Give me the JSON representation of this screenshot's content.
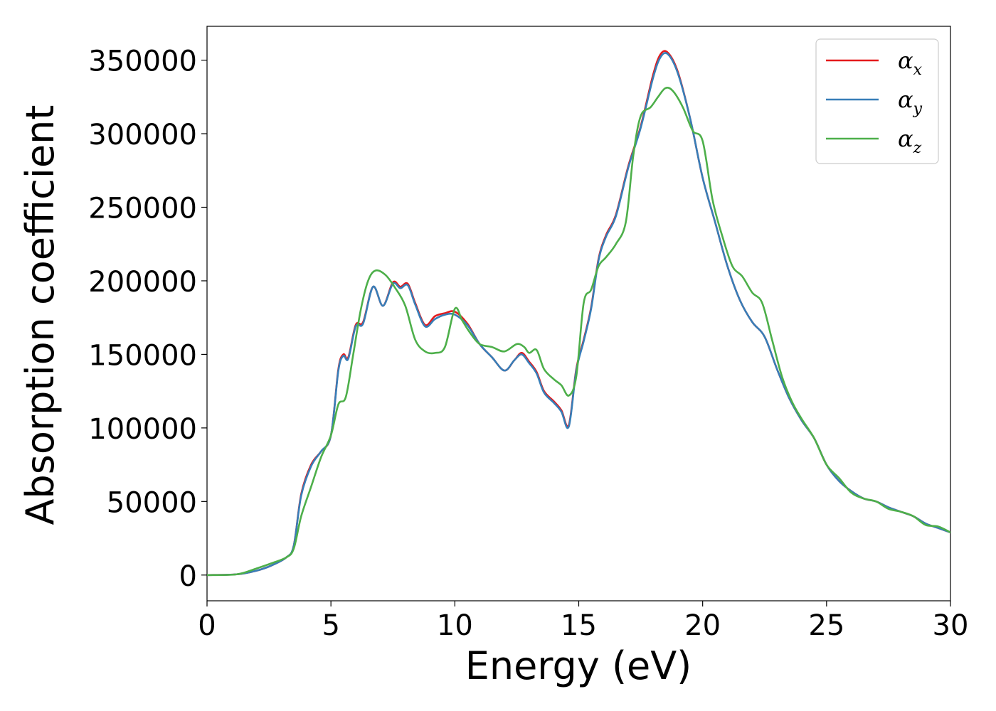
{
  "chart_data": {
    "type": "line",
    "xlabel": "Energy (eV)",
    "ylabel": "Absorption coefficient",
    "xlim": [
      0,
      30
    ],
    "ylim": [
      -17500,
      373000
    ],
    "xticks": [
      0,
      5,
      10,
      15,
      20,
      25,
      30
    ],
    "yticks": [
      0,
      50000,
      100000,
      150000,
      200000,
      250000,
      300000,
      350000
    ],
    "grid": false,
    "legend_position": "top-right",
    "series": [
      {
        "name": "α_x",
        "label_main": "α",
        "label_sub": "x",
        "color": "#e41a1c",
        "x": [
          0,
          1.2,
          2.0,
          2.6,
          3.2,
          3.5,
          3.8,
          4.2,
          4.6,
          5.0,
          5.3,
          5.5,
          5.7,
          6.0,
          6.3,
          6.7,
          7.1,
          7.5,
          7.8,
          8.1,
          8.4,
          8.8,
          9.2,
          9.6,
          10.0,
          10.5,
          11.0,
          11.5,
          12.0,
          12.4,
          12.7,
          13.0,
          13.3,
          13.6,
          14.0,
          14.3,
          14.6,
          14.9,
          15.2,
          15.5,
          15.8,
          16.1,
          16.5,
          17.0,
          17.5,
          18.0,
          18.3,
          18.6,
          19.0,
          19.5,
          20.0,
          20.5,
          21.0,
          21.5,
          22.0,
          22.5,
          23.0,
          23.5,
          24.0,
          24.5,
          25.0,
          25.5,
          26.0,
          26.5,
          27.0,
          27.5,
          28.0,
          28.5,
          29.0,
          29.5,
          30.0
        ],
        "values": [
          0,
          500,
          3000,
          6500,
          12000,
          20000,
          55000,
          75000,
          84000,
          95000,
          140000,
          150000,
          148000,
          170000,
          172000,
          196000,
          183000,
          199000,
          196000,
          198000,
          185000,
          170000,
          176000,
          178000,
          179000,
          171000,
          157000,
          148000,
          139000,
          146000,
          151000,
          145000,
          138000,
          125000,
          118000,
          112000,
          102000,
          140000,
          160000,
          182000,
          215000,
          231000,
          245000,
          278000,
          305000,
          340000,
          354000,
          355000,
          342000,
          310000,
          270000,
          240000,
          210000,
          187000,
          172000,
          162000,
          140000,
          120000,
          105000,
          93000,
          75000,
          64000,
          57000,
          52000,
          50000,
          46000,
          43000,
          40000,
          35000,
          32000,
          29000
        ]
      },
      {
        "name": "α_y",
        "label_main": "α",
        "label_sub": "y",
        "color": "#377eb8",
        "x": [
          0,
          1.2,
          2.0,
          2.6,
          3.2,
          3.5,
          3.8,
          4.2,
          4.6,
          5.0,
          5.3,
          5.5,
          5.7,
          6.0,
          6.3,
          6.7,
          7.1,
          7.5,
          7.8,
          8.1,
          8.4,
          8.8,
          9.2,
          9.6,
          10.0,
          10.5,
          11.0,
          11.5,
          12.0,
          12.4,
          12.7,
          13.0,
          13.3,
          13.6,
          14.0,
          14.3,
          14.6,
          14.9,
          15.2,
          15.5,
          15.8,
          16.1,
          16.5,
          17.0,
          17.5,
          18.0,
          18.3,
          18.6,
          19.0,
          19.5,
          20.0,
          20.5,
          21.0,
          21.5,
          22.0,
          22.5,
          23.0,
          23.5,
          24.0,
          24.5,
          25.0,
          25.5,
          26.0,
          26.5,
          27.0,
          27.5,
          28.0,
          28.5,
          29.0,
          29.5,
          30.0
        ],
        "values": [
          0,
          500,
          3000,
          6500,
          12000,
          20000,
          54000,
          74000,
          84000,
          95000,
          139000,
          149000,
          147000,
          169000,
          171000,
          196000,
          183000,
          198000,
          195000,
          197000,
          184000,
          169000,
          174000,
          177000,
          177000,
          170000,
          157000,
          148000,
          139000,
          146000,
          150000,
          144000,
          137000,
          124000,
          117000,
          111000,
          101000,
          139000,
          159000,
          181000,
          214000,
          230000,
          244000,
          277000,
          304000,
          338000,
          352000,
          354000,
          341000,
          310000,
          270000,
          240000,
          210000,
          187000,
          172000,
          162000,
          140000,
          120000,
          105000,
          93000,
          75000,
          64000,
          57000,
          52000,
          50000,
          46000,
          43000,
          40000,
          35000,
          32000,
          29000
        ]
      },
      {
        "name": "α_z",
        "label_main": "α",
        "label_sub": "z",
        "color": "#4daf4a",
        "x": [
          0,
          1.2,
          2.0,
          2.6,
          3.2,
          3.5,
          3.8,
          4.2,
          4.6,
          5.0,
          5.3,
          5.6,
          5.9,
          6.2,
          6.5,
          6.8,
          7.2,
          7.6,
          8.0,
          8.4,
          8.8,
          9.2,
          9.6,
          10.0,
          10.3,
          10.6,
          11.0,
          11.5,
          12.0,
          12.5,
          12.8,
          13.0,
          13.3,
          13.6,
          14.0,
          14.3,
          14.6,
          14.9,
          15.2,
          15.5,
          15.8,
          16.1,
          16.5,
          16.9,
          17.2,
          17.5,
          17.9,
          18.2,
          18.5,
          18.8,
          19.2,
          19.6,
          20.0,
          20.4,
          20.8,
          21.2,
          21.6,
          22.0,
          22.4,
          22.8,
          23.2,
          23.6,
          24.0,
          24.5,
          25.0,
          25.5,
          26.0,
          26.5,
          27.0,
          27.5,
          28.0,
          28.5,
          29.0,
          29.5,
          30.0
        ],
        "values": [
          0,
          500,
          4500,
          8000,
          12000,
          18000,
          40000,
          60000,
          80000,
          95000,
          116000,
          121000,
          150000,
          180000,
          200000,
          207000,
          204000,
          195000,
          183000,
          160000,
          152000,
          151000,
          155000,
          181000,
          173000,
          165000,
          157000,
          155000,
          152000,
          157000,
          155000,
          151000,
          153000,
          140000,
          133000,
          129000,
          122000,
          135000,
          185000,
          194000,
          210000,
          216000,
          225000,
          240000,
          285000,
          312000,
          318000,
          325000,
          331000,
          329000,
          318000,
          302000,
          295000,
          255000,
          230000,
          210000,
          203000,
          192000,
          185000,
          160000,
          135000,
          118000,
          106000,
          93000,
          75000,
          66000,
          56000,
          52000,
          50000,
          45000,
          43000,
          40000,
          34000,
          33000,
          29000
        ]
      }
    ]
  }
}
